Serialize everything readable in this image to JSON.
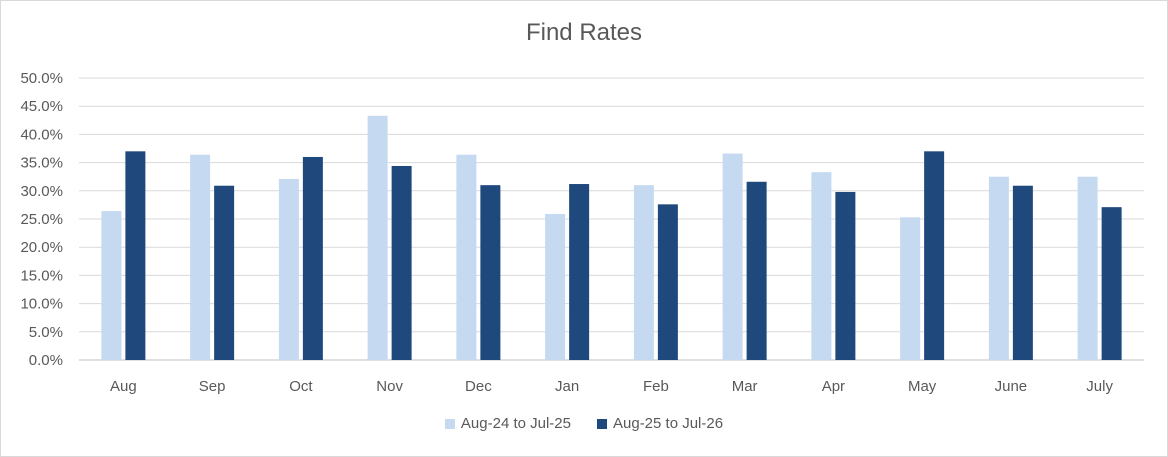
{
  "chart_data": {
    "type": "bar",
    "title": "Find Rates",
    "categories": [
      "Aug",
      "Sep",
      "Oct",
      "Nov",
      "Dec",
      "Jan",
      "Feb",
      "Mar",
      "Apr",
      "May",
      "June",
      "July"
    ],
    "series": [
      {
        "name": "Aug-24 to Jul-25",
        "color": "#c5d9f1",
        "values": [
          26.4,
          36.4,
          32.1,
          43.3,
          36.4,
          25.9,
          31.0,
          36.6,
          33.3,
          25.3,
          32.5,
          32.5
        ]
      },
      {
        "name": "Aug-25 to Jul-26",
        "color": "#1f497d",
        "values": [
          37.0,
          30.9,
          36.0,
          34.4,
          31.0,
          31.2,
          27.6,
          31.6,
          29.8,
          37.0,
          30.9,
          27.1
        ]
      }
    ],
    "y_ticks": [
      "0.0%",
      "5.0%",
      "10.0%",
      "15.0%",
      "20.0%",
      "25.0%",
      "30.0%",
      "35.0%",
      "40.0%",
      "45.0%",
      "50.0%"
    ],
    "ylim": [
      0,
      50
    ],
    "grid": true,
    "legend_position": "bottom"
  }
}
